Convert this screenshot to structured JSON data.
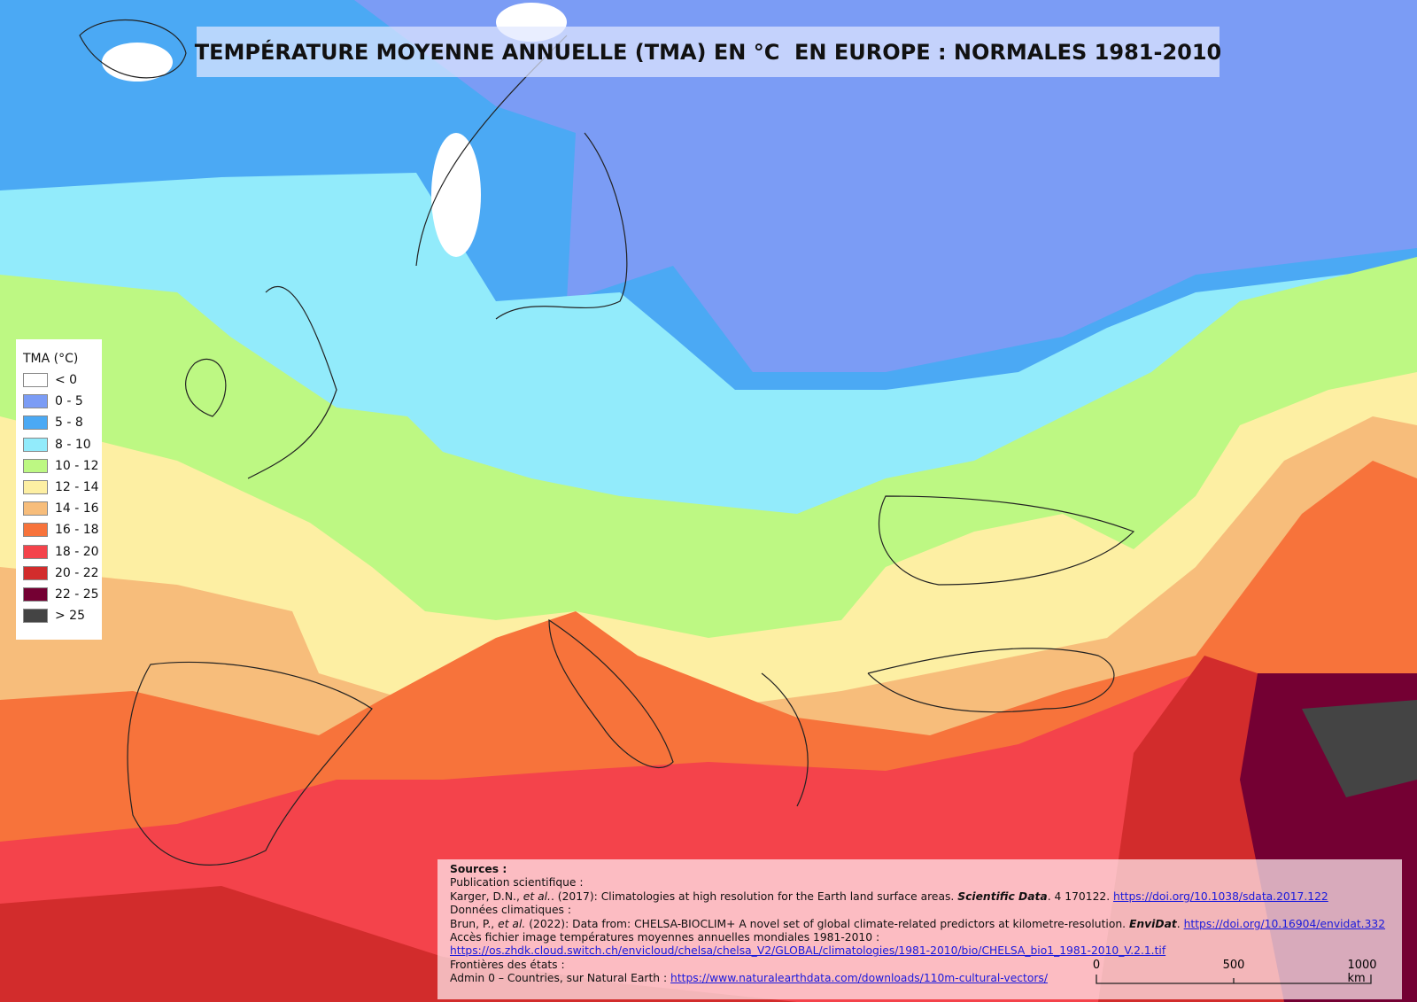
{
  "title": "TEMPÉRATURE MOYENNE ANNUELLE (TMA) EN °C  EN EUROPE : NORMALES 1981-2010",
  "legend": {
    "title": "TMA (°C)",
    "items": [
      {
        "label": "< 0",
        "color": "#ffffff"
      },
      {
        "label": "0 - 5",
        "color": "#7b9cf5"
      },
      {
        "label": "5 - 8",
        "color": "#4ba9f4"
      },
      {
        "label": "8 - 10",
        "color": "#92ebfb"
      },
      {
        "label": "10 - 12",
        "color": "#bdf883"
      },
      {
        "label": "12 - 14",
        "color": "#fdefa3"
      },
      {
        "label": "14 - 16",
        "color": "#f7bd7b"
      },
      {
        "label": "16 - 18",
        "color": "#f7733b"
      },
      {
        "label": "18 - 20",
        "color": "#f4434b"
      },
      {
        "label": "20 - 22",
        "color": "#d22c2c"
      },
      {
        "label": "22 - 25",
        "color": "#740033"
      },
      {
        "label": "> 25",
        "color": "#444444"
      }
    ]
  },
  "sources": {
    "lines": [
      [
        {
          "text": "Sources :",
          "style": "bold"
        }
      ],
      [
        {
          "text": "Publication scientifique :"
        }
      ],
      [
        {
          "text": "Karger, D.N., "
        },
        {
          "text": "et al.",
          "style": "italic"
        },
        {
          "text": ". (2017): Climatologies at high resolution for the Earth land surface areas. "
        },
        {
          "text": "Scientific Data",
          "style": "bold-italic"
        },
        {
          "text": ". 4 170122. "
        },
        {
          "text": "https://doi.org/10.1038/sdata.2017.122",
          "style": "link"
        }
      ],
      [
        {
          "text": "Données climatiques :"
        }
      ],
      [
        {
          "text": "Brun, P., "
        },
        {
          "text": "et al.",
          "style": "italic"
        },
        {
          "text": " (2022): Data from: CHELSA-BIOCLIM+ A novel set of global climate-related predictors at kilometre-resolution. "
        },
        {
          "text": "EnviDat",
          "style": "bold-italic"
        },
        {
          "text": ". "
        },
        {
          "text": "https://doi.org/10.16904/envidat.332",
          "style": "link"
        }
      ],
      [
        {
          "text": "Accès fichier image températures moyennes annuelles mondiales 1981-2010 :"
        }
      ],
      [
        {
          "text": "https://os.zhdk.cloud.switch.ch/envicloud/chelsa/chelsa_V2/GLOBAL/climatologies/1981-2010/bio/CHELSA_bio1_1981-2010_V.2.1.tif",
          "style": "link"
        }
      ],
      [
        {
          "text": "Frontières des états :"
        }
      ],
      [
        {
          "text": "Admin 0 – Countries, sur Natural Earth : "
        },
        {
          "text": "https://www.naturalearthdata.com/downloads/110m-cultural-vectors/",
          "style": "link"
        }
      ]
    ]
  },
  "scale_bar": {
    "labels": [
      "0",
      "500",
      "1000 km"
    ]
  }
}
